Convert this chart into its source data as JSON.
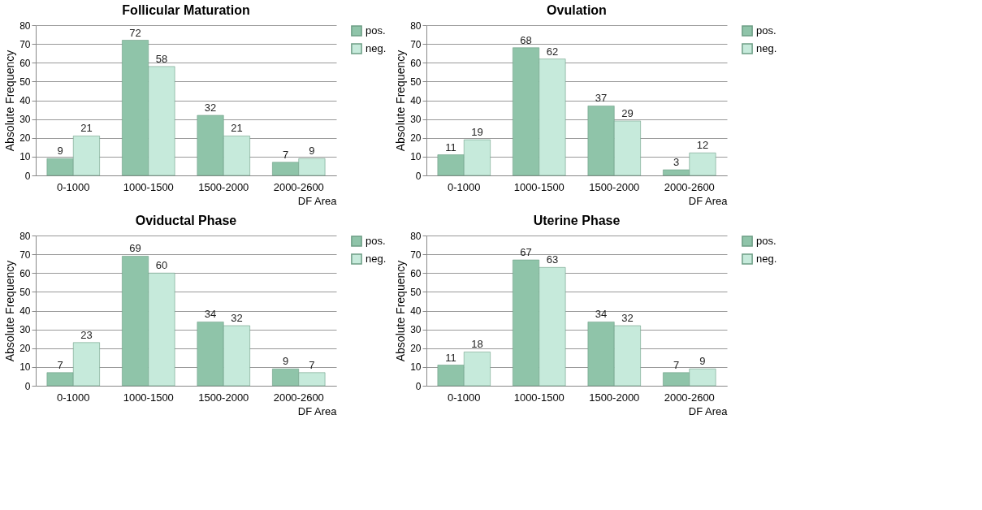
{
  "chart_data": [
    {
      "type": "bar",
      "title": "Follicular Maturation",
      "xlabel": "DF Area",
      "ylabel": "Absolute Frequency",
      "categories": [
        "0-1000",
        "1000-1500",
        "1500-2000",
        "2000-2600"
      ],
      "series": [
        {
          "name": "pos.",
          "color": "#8fc4a9",
          "values": [
            9,
            72,
            32,
            7
          ]
        },
        {
          "name": "neg.",
          "color": "#c6eadb",
          "values": [
            21,
            58,
            21,
            9
          ]
        }
      ],
      "ylim": [
        0,
        80
      ],
      "yticks": [
        0,
        10,
        20,
        30,
        40,
        50,
        60,
        70,
        80
      ],
      "grid": "y",
      "legend": "right",
      "data_labels": true
    },
    {
      "type": "bar",
      "title": "Ovulation",
      "xlabel": "DF Area",
      "ylabel": "Absolute Frequency",
      "categories": [
        "0-1000",
        "1000-1500",
        "1500-2000",
        "2000-2600"
      ],
      "series": [
        {
          "name": "pos.",
          "color": "#8fc4a9",
          "values": [
            11,
            68,
            37,
            3
          ]
        },
        {
          "name": "neg.",
          "color": "#c6eadb",
          "values": [
            19,
            62,
            29,
            12
          ]
        }
      ],
      "ylim": [
        0,
        80
      ],
      "yticks": [
        0,
        10,
        20,
        30,
        40,
        50,
        60,
        70,
        80
      ],
      "grid": "y",
      "legend": "right",
      "data_labels": true
    },
    {
      "type": "bar",
      "title": "Oviductal Phase",
      "xlabel": "DF Area",
      "ylabel": "Absolute Frequency",
      "categories": [
        "0-1000",
        "1000-1500",
        "1500-2000",
        "2000-2600"
      ],
      "series": [
        {
          "name": "pos.",
          "color": "#8fc4a9",
          "values": [
            7,
            69,
            34,
            9
          ]
        },
        {
          "name": "neg.",
          "color": "#c6eadb",
          "values": [
            23,
            60,
            32,
            7
          ]
        }
      ],
      "ylim": [
        0,
        80
      ],
      "yticks": [
        0,
        10,
        20,
        30,
        40,
        50,
        60,
        70,
        80
      ],
      "grid": "y",
      "legend": "right",
      "data_labels": true
    },
    {
      "type": "bar",
      "title": "Uterine Phase",
      "xlabel": "DF Area",
      "ylabel": "Absolute Frequency",
      "categories": [
        "0-1000",
        "1000-1500",
        "1500-2000",
        "2000-2600"
      ],
      "series": [
        {
          "name": "pos.",
          "color": "#8fc4a9",
          "values": [
            11,
            67,
            34,
            7
          ]
        },
        {
          "name": "neg.",
          "color": "#c6eadb",
          "values": [
            18,
            63,
            32,
            9
          ]
        }
      ],
      "ylim": [
        0,
        80
      ],
      "yticks": [
        0,
        10,
        20,
        30,
        40,
        50,
        60,
        70,
        80
      ],
      "grid": "y",
      "legend": "right",
      "data_labels": true
    }
  ]
}
